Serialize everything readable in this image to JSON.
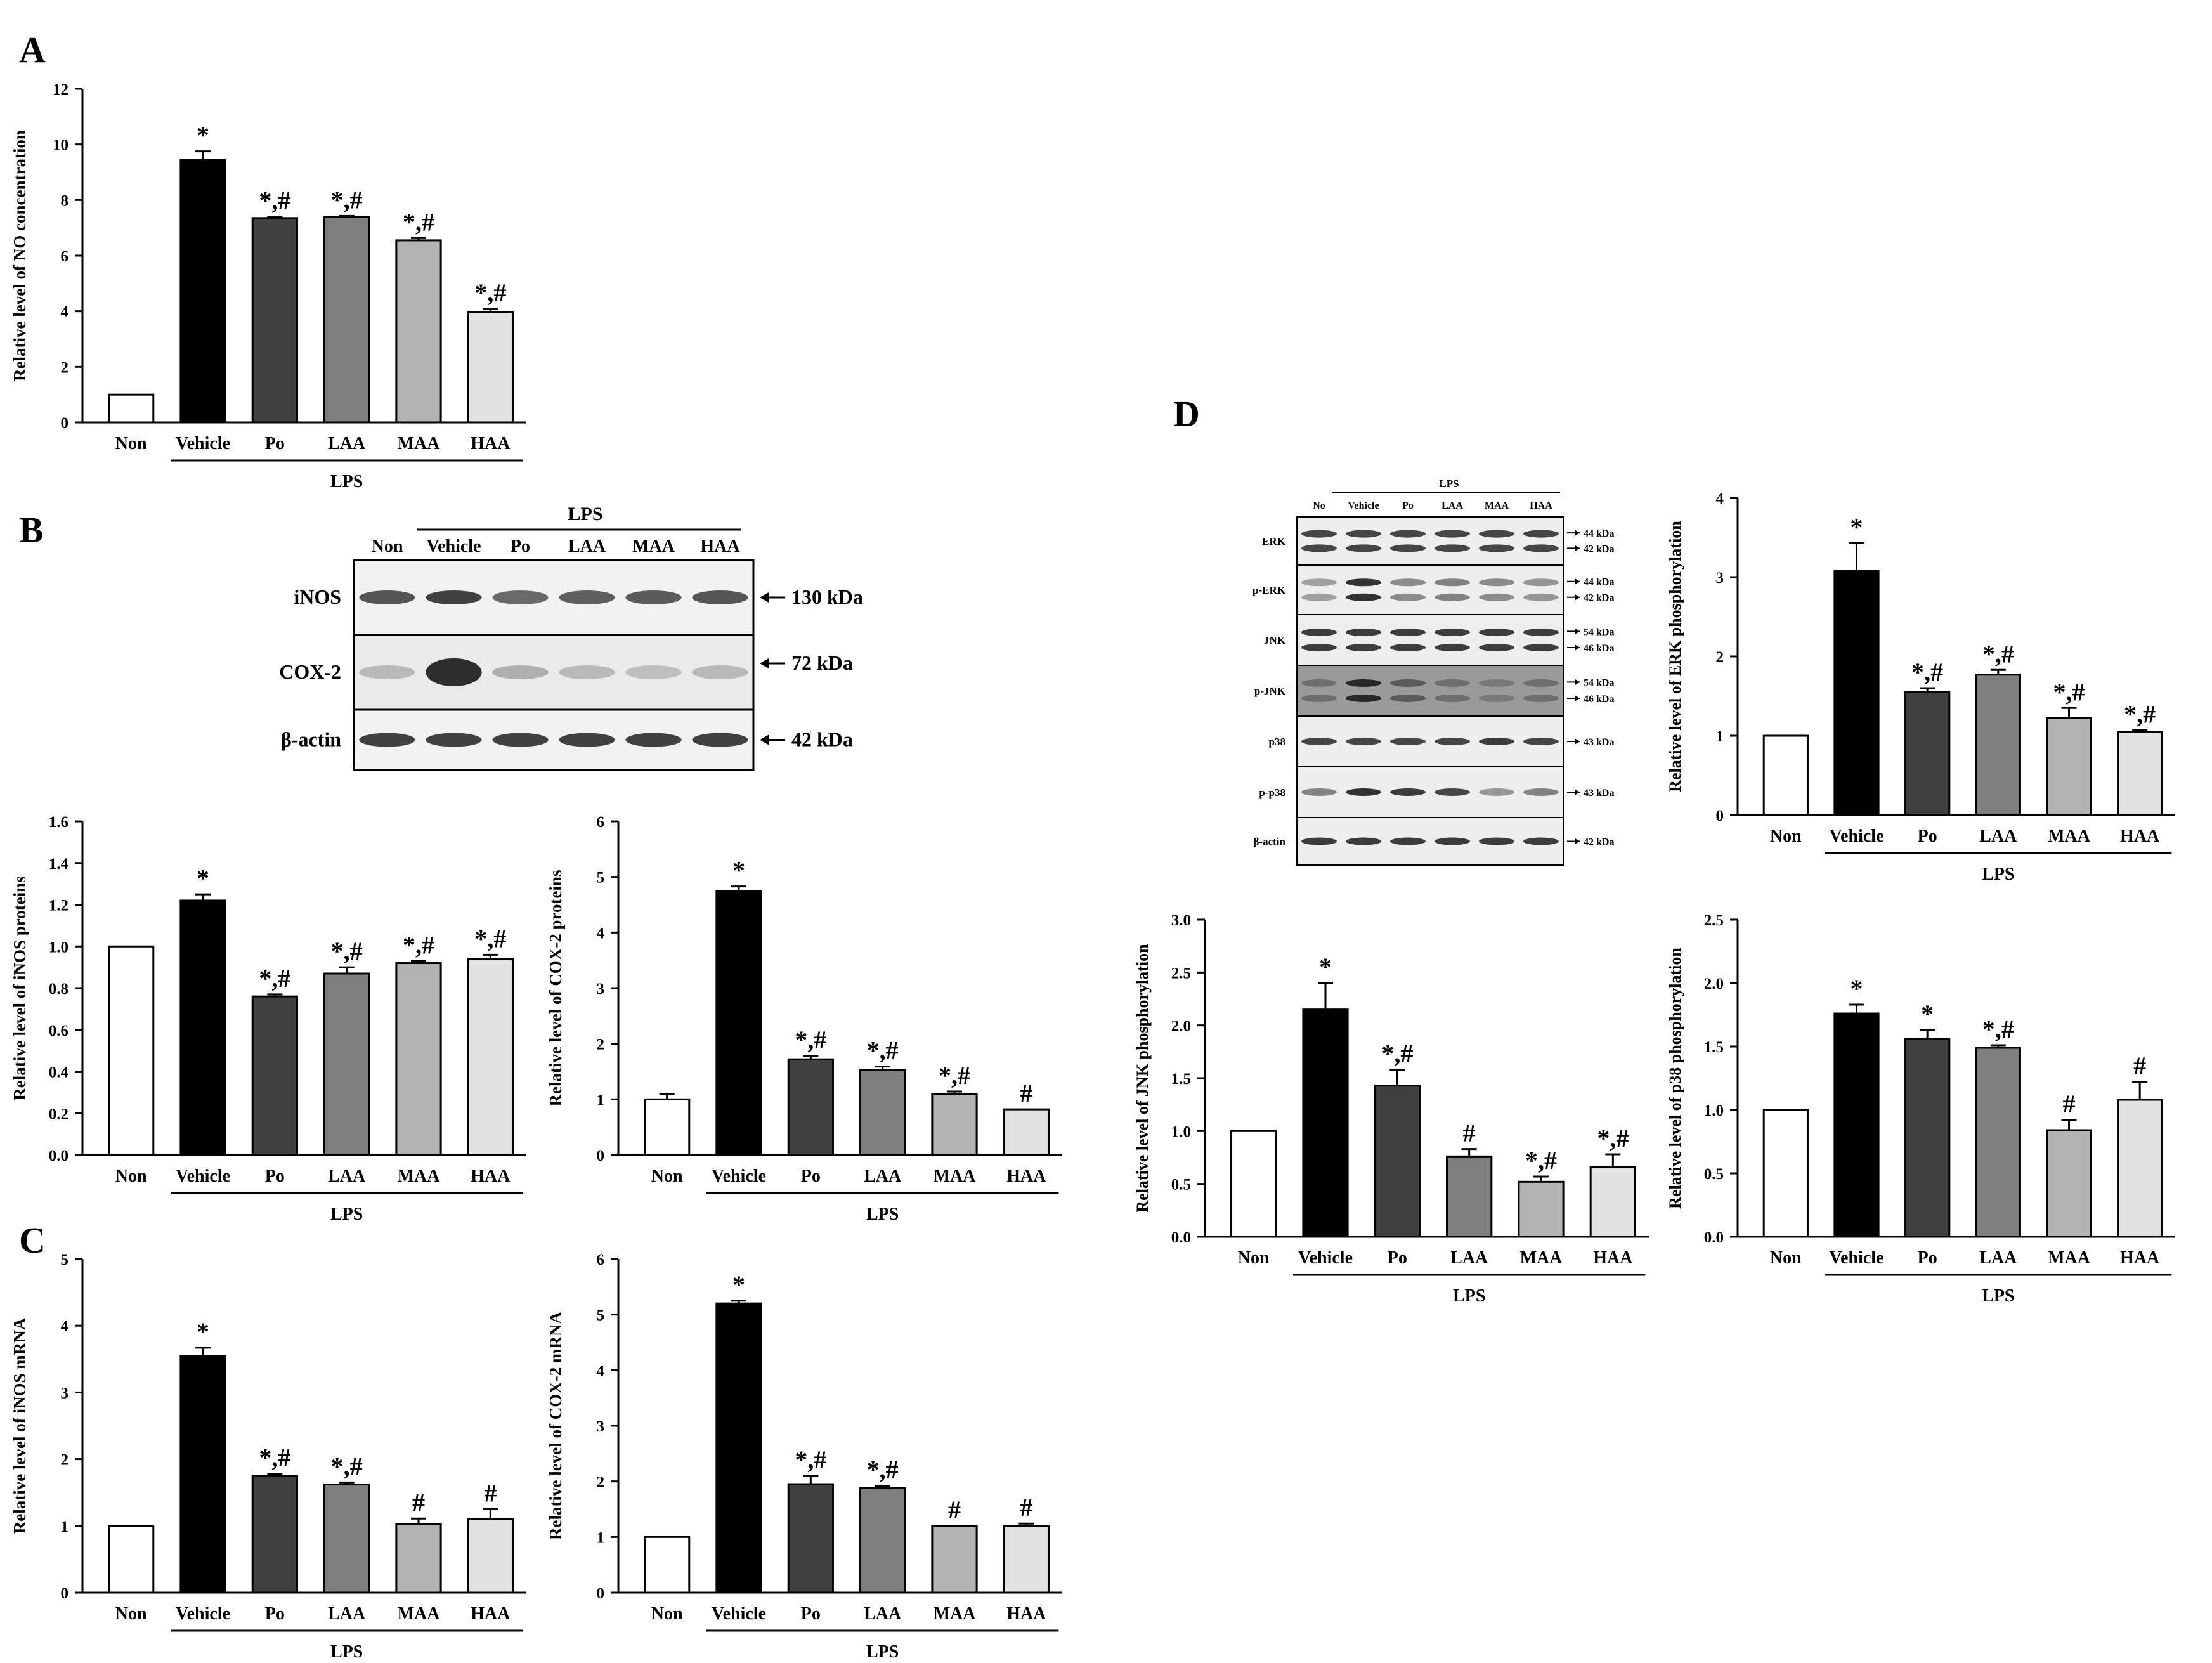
{
  "panel_labels": {
    "A": "A",
    "B": "B",
    "C": "C",
    "D": "D"
  },
  "blot_b": {
    "group": "LPS",
    "lanes": [
      "Non",
      "Vehicle",
      "Po",
      "LAA",
      "MAA",
      "HAA"
    ],
    "rows": [
      {
        "label": "iNOS",
        "size": "130 kDa",
        "intensity": [
          0.75,
          0.85,
          0.65,
          0.7,
          0.72,
          0.75
        ]
      },
      {
        "label": "COX-2",
        "size": "72 kDa",
        "intensity": [
          0.25,
          0.95,
          0.3,
          0.25,
          0.22,
          0.25
        ]
      },
      {
        "label": "β-actin",
        "size": "42 kDa",
        "intensity": [
          0.85,
          0.85,
          0.85,
          0.85,
          0.85,
          0.85
        ]
      }
    ]
  },
  "blot_d": {
    "group": "LPS",
    "lanes": [
      "No",
      "Vehicle",
      "Po",
      "LAA",
      "MAA",
      "HAA"
    ],
    "rows": [
      {
        "label": "ERK",
        "sizes": [
          "44 kDa",
          "42 kDa"
        ],
        "intensity": [
          0.8,
          0.8,
          0.8,
          0.8,
          0.8,
          0.8
        ]
      },
      {
        "label": "p-ERK",
        "sizes": [
          "44 kDa",
          "42 kDa"
        ],
        "intensity": [
          0.35,
          0.9,
          0.45,
          0.5,
          0.45,
          0.4
        ]
      },
      {
        "label": "JNK",
        "sizes": [
          "54 kDa",
          "46 kDa"
        ],
        "intensity": [
          0.85,
          0.85,
          0.85,
          0.85,
          0.85,
          0.85
        ]
      },
      {
        "label": "p-JNK",
        "sizes": [
          "54 kDa",
          "46 kDa"
        ],
        "intensity": [
          0.6,
          0.95,
          0.7,
          0.6,
          0.55,
          0.6
        ]
      },
      {
        "label": "p38",
        "sizes": [
          "43 kDa"
        ],
        "intensity": [
          0.8,
          0.8,
          0.8,
          0.8,
          0.85,
          0.8
        ]
      },
      {
        "label": "p-p38",
        "sizes": [
          "43 kDa"
        ],
        "intensity": [
          0.5,
          0.9,
          0.85,
          0.8,
          0.4,
          0.5
        ]
      },
      {
        "label": "β-actin",
        "sizes": [
          "42 kDa"
        ],
        "intensity": [
          0.85,
          0.85,
          0.85,
          0.85,
          0.85,
          0.85
        ]
      }
    ]
  },
  "colors": {
    "bars": [
      "#ffffff",
      "#000000",
      "#404040",
      "#7f7f7f",
      "#b3b3b3",
      "#e2e2e2"
    ],
    "axis": "#000000"
  },
  "chart_data": [
    {
      "id": "A",
      "type": "bar",
      "categories": [
        "Non",
        "Vehicle",
        "Po",
        "LAA",
        "MAA",
        "HAA"
      ],
      "group_label": "LPS",
      "values": [
        1.0,
        9.45,
        7.35,
        7.38,
        6.55,
        3.98
      ],
      "errors": [
        0,
        0.3,
        0.05,
        0.05,
        0.08,
        0.1
      ],
      "annotations": [
        "",
        "*",
        "*,#",
        "*,#",
        "*,#",
        "*,#"
      ],
      "ylabel": "Relative level of NO concentration",
      "ylim": [
        0,
        12
      ],
      "yticks": [
        "0",
        "2",
        "4",
        "6",
        "8",
        "10",
        "12"
      ]
    },
    {
      "id": "B-iNOS",
      "type": "bar",
      "categories": [
        "Non",
        "Vehicle",
        "Po",
        "LAA",
        "MAA",
        "HAA"
      ],
      "group_label": "LPS",
      "values": [
        1.0,
        1.22,
        0.76,
        0.87,
        0.92,
        0.94
      ],
      "errors": [
        0,
        0.03,
        0.01,
        0.03,
        0.01,
        0.02
      ],
      "annotations": [
        "",
        "*",
        "*,#",
        "*,#",
        "*,#",
        "*,#"
      ],
      "ylabel": "Relative level of iNOS proteins",
      "ylim": [
        0,
        1.6
      ],
      "yticks": [
        "0.0",
        "0.2",
        "0.4",
        "0.6",
        "0.8",
        "1.0",
        "1.2",
        "1.4",
        "1.6"
      ]
    },
    {
      "id": "B-COX2",
      "type": "bar",
      "categories": [
        "Non",
        "Vehicle",
        "Po",
        "LAA",
        "MAA",
        "HAA"
      ],
      "group_label": "LPS",
      "values": [
        1.0,
        4.75,
        1.72,
        1.53,
        1.1,
        0.82
      ],
      "errors": [
        0.1,
        0.08,
        0.06,
        0.06,
        0.04,
        0
      ],
      "annotations": [
        "",
        "*",
        "*,#",
        "*,#",
        "*,#",
        "#"
      ],
      "ylabel": "Relative level of COX-2 proteins",
      "ylim": [
        0,
        6
      ],
      "yticks": [
        "0",
        "1",
        "2",
        "3",
        "4",
        "5",
        "6"
      ]
    },
    {
      "id": "C-iNOS",
      "type": "bar",
      "categories": [
        "Non",
        "Vehicle",
        "Po",
        "LAA",
        "MAA",
        "HAA"
      ],
      "group_label": "LPS",
      "values": [
        1.0,
        3.55,
        1.75,
        1.62,
        1.03,
        1.1
      ],
      "errors": [
        0,
        0.12,
        0.03,
        0.03,
        0.08,
        0.15
      ],
      "annotations": [
        "",
        "*",
        "*,#",
        "*,#",
        "#",
        "#"
      ],
      "ylabel": "Relative level of iNOS mRNA",
      "ylim": [
        0,
        5
      ],
      "yticks": [
        "0",
        "1",
        "2",
        "3",
        "4",
        "5"
      ]
    },
    {
      "id": "C-COX2",
      "type": "bar",
      "categories": [
        "Non",
        "Vehicle",
        "Po",
        "LAA",
        "MAA",
        "HAA"
      ],
      "group_label": "LPS",
      "values": [
        1.0,
        5.2,
        1.95,
        1.88,
        1.2,
        1.2
      ],
      "errors": [
        0,
        0.05,
        0.15,
        0.04,
        0,
        0.04
      ],
      "annotations": [
        "",
        "*",
        "*,#",
        "*,#",
        "#",
        "#"
      ],
      "ylabel": "Relative level of COX-2 mRNA",
      "ylim": [
        0,
        6
      ],
      "yticks": [
        "0",
        "1",
        "2",
        "3",
        "4",
        "5",
        "6"
      ]
    },
    {
      "id": "D-ERK",
      "type": "bar",
      "categories": [
        "Non",
        "Vehicle",
        "Po",
        "LAA",
        "MAA",
        "HAA"
      ],
      "group_label": "LPS",
      "values": [
        1.0,
        3.08,
        1.55,
        1.77,
        1.22,
        1.05
      ],
      "errors": [
        0,
        0.35,
        0.05,
        0.06,
        0.13,
        0.02
      ],
      "annotations": [
        "",
        "*",
        "*,#",
        "*,#",
        "*,#",
        "*,#"
      ],
      "ylabel": "Relative level of ERK phosphorylation",
      "ylim": [
        0,
        4
      ],
      "yticks": [
        "0",
        "1",
        "2",
        "3",
        "4"
      ]
    },
    {
      "id": "D-JNK",
      "type": "bar",
      "categories": [
        "Non",
        "Vehicle",
        "Po",
        "LAA",
        "MAA",
        "HAA"
      ],
      "group_label": "LPS",
      "values": [
        1.0,
        2.15,
        1.43,
        0.76,
        0.52,
        0.66
      ],
      "errors": [
        0,
        0.25,
        0.15,
        0.07,
        0.05,
        0.12
      ],
      "annotations": [
        "",
        "*",
        "*,#",
        "#",
        "*,#",
        "*,#"
      ],
      "ylabel": "Relative level of JNK phosphorylation",
      "ylim": [
        0,
        3.0
      ],
      "yticks": [
        "0.0",
        "0.5",
        "1.0",
        "1.5",
        "2.0",
        "2.5",
        "3.0"
      ]
    },
    {
      "id": "D-p38",
      "type": "bar",
      "categories": [
        "Non",
        "Vehicle",
        "Po",
        "LAA",
        "MAA",
        "HAA"
      ],
      "group_label": "LPS",
      "values": [
        1.0,
        1.76,
        1.56,
        1.49,
        0.84,
        1.08
      ],
      "errors": [
        0,
        0.07,
        0.07,
        0.02,
        0.08,
        0.14
      ],
      "annotations": [
        "",
        "*",
        "*",
        "*,#",
        "#",
        "#"
      ],
      "ylabel": "Relative level of p38 phosphorylation",
      "ylim": [
        0,
        2.5
      ],
      "yticks": [
        "0.0",
        "0.5",
        "1.0",
        "1.5",
        "2.0",
        "2.5"
      ]
    }
  ]
}
